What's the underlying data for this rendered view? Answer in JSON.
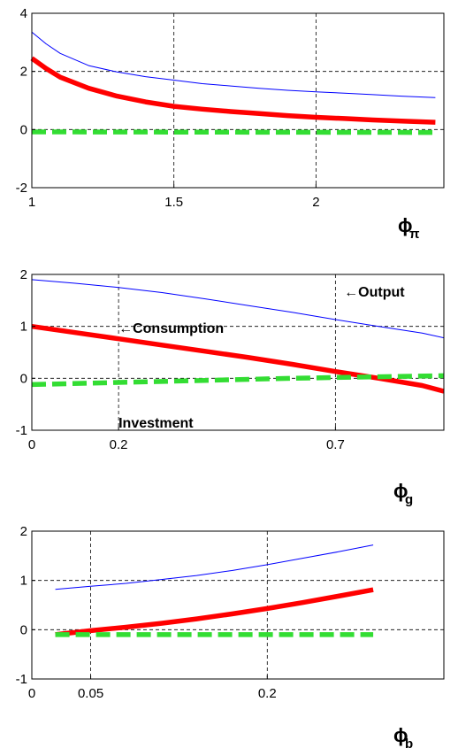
{
  "colors": {
    "output": "#0000ff",
    "consumption": "#ff0000",
    "investment": "#33dd33"
  },
  "chart_data": [
    {
      "type": "line",
      "xlabel": {
        "main": "ϕ",
        "sub": "π"
      },
      "xlim": [
        1,
        2.45
      ],
      "ylim": [
        -2,
        4
      ],
      "xticks": [
        1,
        1.5,
        2
      ],
      "xtick_labels": [
        "1",
        "1.5",
        "2"
      ],
      "yticks": [
        -2,
        0,
        2,
        4
      ],
      "ytick_labels": [
        "-2",
        "0",
        "2",
        "4"
      ],
      "grid": true,
      "series": [
        {
          "key": "output",
          "style": "thin-solid",
          "x": [
            1.0,
            1.05,
            1.1,
            1.2,
            1.3,
            1.4,
            1.5,
            1.6,
            1.7,
            1.8,
            1.9,
            2.0,
            2.1,
            2.2,
            2.3,
            2.42
          ],
          "y": [
            3.35,
            2.95,
            2.62,
            2.2,
            1.98,
            1.82,
            1.7,
            1.58,
            1.5,
            1.42,
            1.35,
            1.3,
            1.25,
            1.2,
            1.15,
            1.1
          ]
        },
        {
          "key": "consumption",
          "style": "thick-solid",
          "x": [
            1.0,
            1.05,
            1.1,
            1.2,
            1.3,
            1.4,
            1.5,
            1.6,
            1.7,
            1.8,
            1.9,
            2.0,
            2.1,
            2.2,
            2.3,
            2.42
          ],
          "y": [
            2.45,
            2.1,
            1.8,
            1.42,
            1.15,
            0.95,
            0.8,
            0.7,
            0.62,
            0.55,
            0.48,
            0.42,
            0.38,
            0.33,
            0.29,
            0.25
          ]
        },
        {
          "key": "investment",
          "style": "thick-dashed",
          "x": [
            1.0,
            2.42
          ],
          "y": [
            -0.08,
            -0.1
          ]
        }
      ],
      "annotations": []
    },
    {
      "type": "line",
      "xlabel": {
        "main": "ϕ",
        "sub": "g"
      },
      "xlim": [
        0,
        0.95
      ],
      "ylim": [
        -1,
        2
      ],
      "xticks": [
        0,
        0.2,
        0.7
      ],
      "xtick_labels": [
        "0",
        "0.2",
        "0.7"
      ],
      "yticks": [
        -1,
        0,
        1,
        2
      ],
      "ytick_labels": [
        "-1",
        "0",
        "1",
        "2"
      ],
      "grid": true,
      "series": [
        {
          "key": "output",
          "style": "thin-solid",
          "x": [
            0,
            0.1,
            0.2,
            0.3,
            0.4,
            0.5,
            0.6,
            0.7,
            0.8,
            0.9,
            0.95
          ],
          "y": [
            1.9,
            1.83,
            1.75,
            1.65,
            1.53,
            1.4,
            1.27,
            1.13,
            1.0,
            0.87,
            0.78
          ]
        },
        {
          "key": "consumption",
          "style": "thick-solid",
          "x": [
            0,
            0.1,
            0.2,
            0.3,
            0.4,
            0.5,
            0.6,
            0.7,
            0.8,
            0.9,
            0.95
          ],
          "y": [
            1.0,
            0.88,
            0.76,
            0.64,
            0.52,
            0.4,
            0.27,
            0.13,
            0.0,
            -0.14,
            -0.25
          ]
        },
        {
          "key": "investment",
          "style": "thick-dashed",
          "x": [
            0,
            0.2,
            0.4,
            0.6,
            0.8,
            0.95
          ],
          "y": [
            -0.12,
            -0.08,
            -0.04,
            0.0,
            0.03,
            0.05
          ]
        }
      ],
      "annotations": [
        {
          "text": "←Output",
          "x": 0.72,
          "y": 1.68
        },
        {
          "text": "←Consumption",
          "x": 0.2,
          "y": 0.98
        },
        {
          "text": "Investment",
          "x": 0.2,
          "y": -0.85
        }
      ]
    },
    {
      "type": "line",
      "xlabel": {
        "main": "ϕ",
        "sub": "b"
      },
      "xlim": [
        0,
        0.35
      ],
      "ylim": [
        -1,
        2
      ],
      "xticks": [
        0,
        0.05,
        0.2
      ],
      "xtick_labels": [
        "0",
        "0.05",
        "0.2"
      ],
      "yticks": [
        -1,
        0,
        1,
        2
      ],
      "ytick_labels": [
        "-1",
        "0",
        "1",
        "2"
      ],
      "grid": true,
      "series": [
        {
          "key": "output",
          "style": "thin-solid",
          "x": [
            0.02,
            0.05,
            0.08,
            0.11,
            0.14,
            0.17,
            0.2,
            0.23,
            0.26,
            0.29
          ],
          "y": [
            0.82,
            0.88,
            0.94,
            1.02,
            1.1,
            1.2,
            1.32,
            1.45,
            1.58,
            1.72
          ]
        },
        {
          "key": "consumption",
          "style": "thick-solid",
          "x": [
            0.02,
            0.05,
            0.08,
            0.11,
            0.14,
            0.17,
            0.2,
            0.23,
            0.26,
            0.29
          ],
          "y": [
            -0.1,
            -0.02,
            0.05,
            0.13,
            0.22,
            0.32,
            0.43,
            0.55,
            0.68,
            0.81
          ]
        },
        {
          "key": "investment",
          "style": "thick-dashed",
          "x": [
            0.02,
            0.29
          ],
          "y": [
            -0.1,
            -0.1
          ]
        }
      ],
      "annotations": []
    }
  ]
}
